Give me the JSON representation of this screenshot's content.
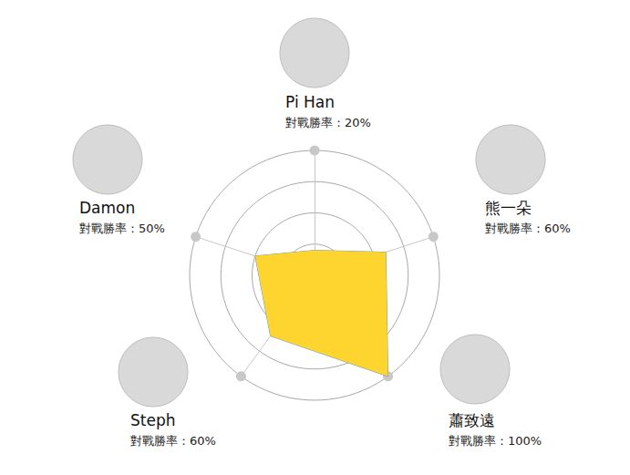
{
  "chart_data": {
    "type": "radar",
    "categories": [
      "Pi Han",
      "Damon",
      "Steph",
      "蕭致遠",
      "熊一朵"
    ],
    "values": [
      20,
      50,
      60,
      100,
      60
    ],
    "value_labels": [
      "對戰勝率：20%",
      "對戰勝率：50%",
      "對戰勝率：60%",
      "對戰勝率：100%",
      "對戰勝率：60%"
    ],
    "color": "#fdd52e",
    "ylim": [
      0,
      100
    ],
    "yticks": [
      0,
      25,
      50,
      75,
      100
    ],
    "grid": true,
    "tick_labels": false
  }
}
